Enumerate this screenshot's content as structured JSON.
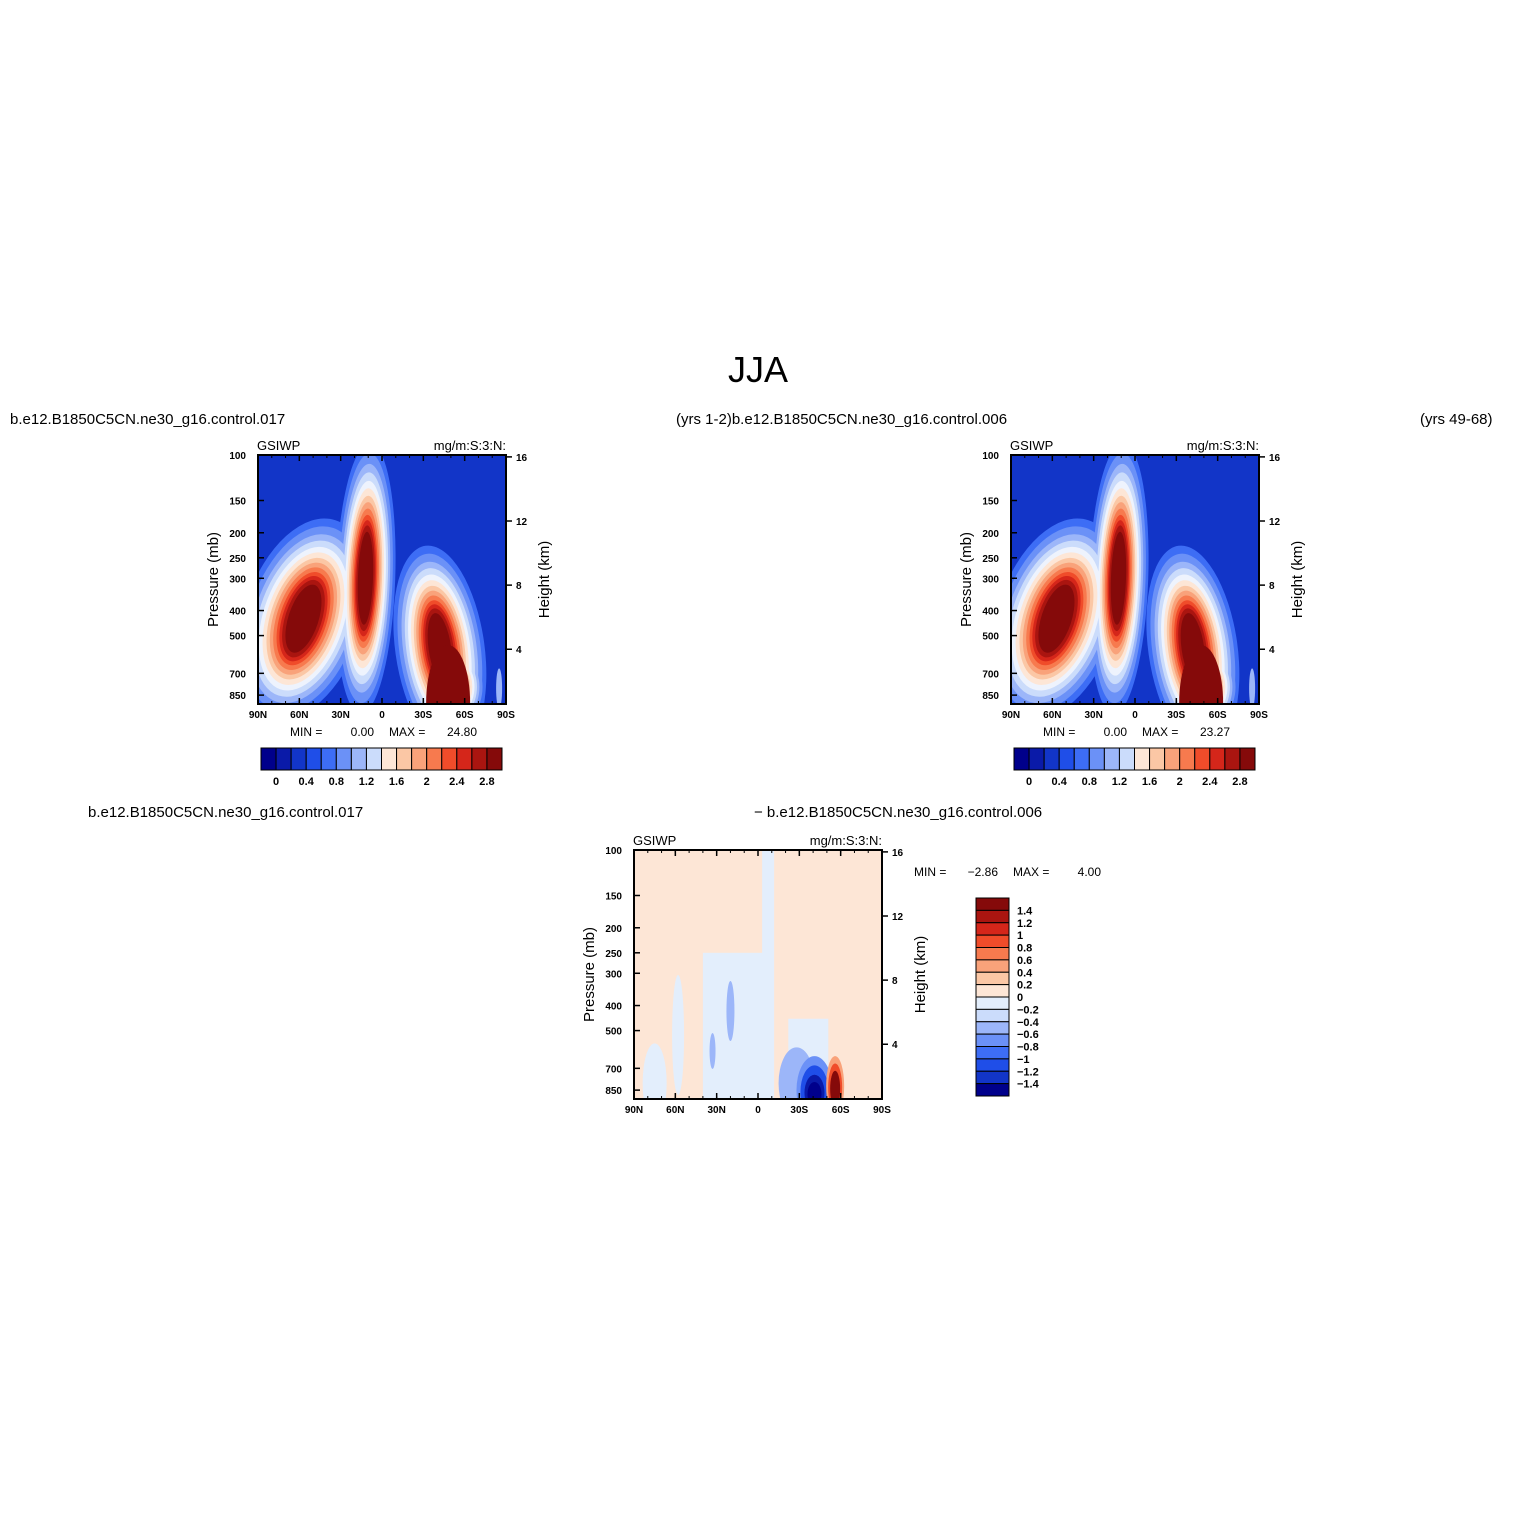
{
  "figure": {
    "title": "JJA",
    "top_left_caption": "b.e12.B1850C5CN.ne30_g16.control.017",
    "top_mid_caption": "(yrs  1-2)b.e12.B1850C5CN.ne30_g16.control.006",
    "top_right_caption": "(yrs  49-68)",
    "diff_left_caption": "b.e12.B1850C5CN.ne30_g16.control.017",
    "diff_right_caption": "−  b.e12.B1850C5CN.ne30_g16.control.006"
  },
  "colors": {
    "full_scale": [
      "#00008b",
      "#0a1aa8",
      "#1235c8",
      "#1f4ee8",
      "#3d6df5",
      "#6b91f7",
      "#9cb6f9",
      "#cbdcfb",
      "#eef3fd",
      "#fde6d6",
      "#fbc7a5",
      "#f9a27a",
      "#f77a4e",
      "#f04c2a",
      "#d5261a",
      "#aa1510",
      "#850a0a"
    ],
    "diff_scale": [
      "#00008b",
      "#0a1aa8",
      "#1235c8",
      "#1f4ee8",
      "#3d6df5",
      "#6b91f7",
      "#9cb6f9",
      "#cbdcfb",
      "#e3eefc",
      "#fde6d6",
      "#fbc7a5",
      "#f9a27a",
      "#f77a4e",
      "#f04c2a",
      "#d5261a",
      "#aa1510",
      "#850a0a"
    ]
  },
  "chart_data": [
    {
      "type": "heatmap",
      "variable": "GSIWP",
      "units": "mg/m:S:3:N:",
      "xlabel": "",
      "ylabel": "Pressure (mb)",
      "y2label": "Height (km)",
      "x_ticks": [
        "90N",
        "60N",
        "30N",
        "0",
        "30S",
        "60S",
        "90S"
      ],
      "y_ticks": [
        100,
        150,
        200,
        250,
        300,
        400,
        500,
        700,
        850
      ],
      "y2_ticks": [
        4,
        8,
        12,
        16
      ],
      "stats": {
        "min_label": "MIN =",
        "min": "0.00",
        "max_label": "MAX =",
        "max": "24.80"
      },
      "colorbar": {
        "labels": [
          "0",
          "0.4",
          "0.8",
          "1.2",
          "1.6",
          "2",
          "2.4",
          "2.8"
        ],
        "levels": [
          0,
          0.2,
          0.4,
          0.6,
          0.8,
          1.0,
          1.2,
          1.4,
          1.6,
          1.8,
          2.0,
          2.2,
          2.4,
          2.6,
          2.8,
          3.0
        ],
        "orientation": "horizontal"
      },
      "features": [
        {
          "lat": 55,
          "p": 430,
          "peak": 3.0,
          "desc": "NH mid-latitude maximum"
        },
        {
          "lat": 12,
          "p": 300,
          "peak": 3.0,
          "desc": "tropical maximum"
        },
        {
          "lat": -48,
          "p": 780,
          "peak": 3.0,
          "desc": "SH storm-track maximum"
        }
      ]
    },
    {
      "type": "heatmap",
      "variable": "GSIWP",
      "units": "mg/m:S:3:N:",
      "xlabel": "",
      "ylabel": "Pressure (mb)",
      "y2label": "Height (km)",
      "x_ticks": [
        "90N",
        "60N",
        "30N",
        "0",
        "30S",
        "60S",
        "90S"
      ],
      "y_ticks": [
        100,
        150,
        200,
        250,
        300,
        400,
        500,
        700,
        850
      ],
      "y2_ticks": [
        4,
        8,
        12,
        16
      ],
      "stats": {
        "min_label": "MIN =",
        "min": "0.00",
        "max_label": "MAX =",
        "max": "23.27"
      },
      "colorbar": {
        "labels": [
          "0",
          "0.4",
          "0.8",
          "1.2",
          "1.6",
          "2",
          "2.4",
          "2.8"
        ],
        "levels": [
          0,
          0.2,
          0.4,
          0.6,
          0.8,
          1.0,
          1.2,
          1.4,
          1.6,
          1.8,
          2.0,
          2.2,
          2.4,
          2.6,
          2.8,
          3.0
        ],
        "orientation": "horizontal"
      },
      "features": [
        {
          "lat": 55,
          "p": 430,
          "peak": 3.0
        },
        {
          "lat": 12,
          "p": 300,
          "peak": 3.0
        },
        {
          "lat": -48,
          "p": 780,
          "peak": 3.0
        }
      ]
    },
    {
      "type": "heatmap",
      "variable": "GSIWP",
      "units": "mg/m:S:3:N:",
      "xlabel": "",
      "ylabel": "Pressure (mb)",
      "y2label": "Height (km)",
      "x_ticks": [
        "90N",
        "60N",
        "30N",
        "0",
        "30S",
        "60S",
        "90S"
      ],
      "y_ticks": [
        100,
        150,
        200,
        250,
        300,
        400,
        500,
        700,
        850
      ],
      "y2_ticks": [
        4,
        8,
        12,
        16
      ],
      "stats": {
        "min_label": "MIN =",
        "min": "−2.86",
        "max_label": "MAX =",
        "max": "4.00"
      },
      "colorbar": {
        "labels": [
          "1.4",
          "1.2",
          "1",
          "0.8",
          "0.6",
          "0.4",
          "0.2",
          "0",
          "−0.2",
          "−0.4",
          "−0.6",
          "−0.8",
          "−1",
          "−1.2",
          "−1.4"
        ],
        "levels": [
          1.4,
          1.2,
          1.0,
          0.8,
          0.6,
          0.4,
          0.2,
          0,
          -0.2,
          -0.4,
          -0.6,
          -0.8,
          -1.0,
          -1.2,
          -1.4
        ],
        "orientation": "vertical"
      },
      "features": [
        {
          "lat": -42,
          "p": 820,
          "peak": -1.5,
          "desc": "negative difference"
        },
        {
          "lat": -56,
          "p": 790,
          "peak": 1.5,
          "desc": "positive difference"
        }
      ]
    }
  ]
}
